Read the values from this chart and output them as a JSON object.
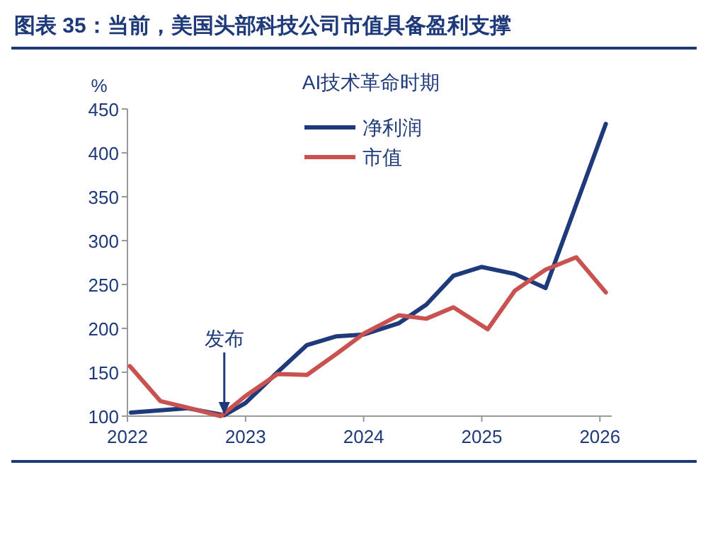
{
  "chart_data": {
    "type": "line",
    "title": "图表 35：当前，美国头部科技公司市值具备盈利支撑",
    "subtitle": "AI技术革命时期",
    "ylabel": "%",
    "xlim": [
      2022,
      2026.1
    ],
    "xticks": [
      2022,
      2023,
      2024,
      2025,
      2026
    ],
    "ylim": [
      100,
      450
    ],
    "yticks": [
      100,
      150,
      200,
      250,
      300,
      350,
      400,
      450
    ],
    "legend": "top",
    "annotations": [
      {
        "text": "发布",
        "x": 2022.82,
        "y": 100
      }
    ],
    "series": [
      {
        "name": "净利润",
        "color": "#1f3a7a",
        "x": [
          2022.03,
          2022.51,
          2022.82,
          2023.0,
          2023.27,
          2023.52,
          2023.77,
          2024.0,
          2024.3,
          2024.53,
          2024.76,
          2025.0,
          2025.28,
          2025.54,
          2026.05
        ],
        "values": [
          104,
          109,
          101,
          115,
          150,
          181,
          191,
          193,
          206,
          227,
          260,
          270,
          262,
          246,
          433
        ]
      },
      {
        "name": "市值",
        "color": "#c9514f",
        "x": [
          2022.02,
          2022.28,
          2022.53,
          2022.79,
          2023.0,
          2023.27,
          2023.52,
          2023.77,
          2024.0,
          2024.3,
          2024.53,
          2024.76,
          2025.05,
          2025.28,
          2025.54,
          2025.8,
          2026.05
        ],
        "values": [
          157,
          117,
          109,
          100,
          123,
          148,
          147,
          171,
          194,
          215,
          211,
          224,
          199,
          243,
          267,
          281,
          241
        ]
      }
    ]
  }
}
